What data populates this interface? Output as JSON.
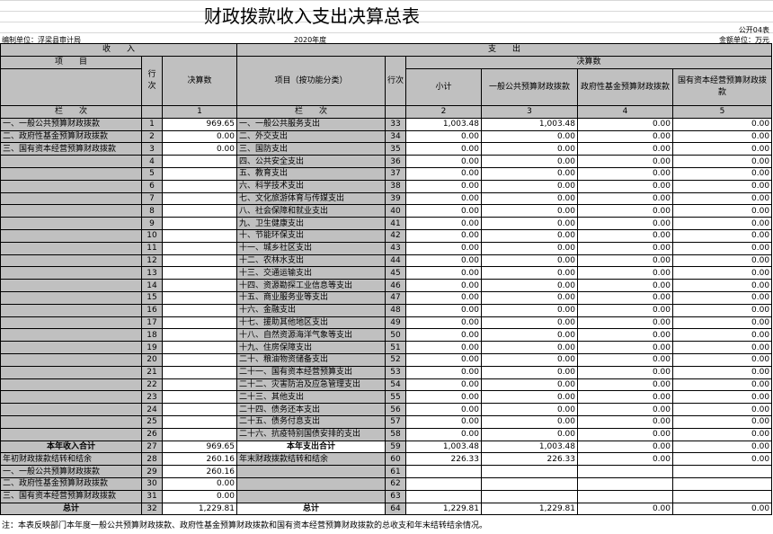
{
  "title": "财政拨款收入支出决算总表",
  "form_no": "公开04表",
  "unit": "金额单位：万元",
  "org": "编制单位：浮梁县审计局",
  "year": "2020年度",
  "header": {
    "income": "收　　入",
    "expense": "支　　出",
    "item": "项　　目",
    "line": "行次",
    "amount": "决算数",
    "item_func": "项目（按功能分类）",
    "line2": "行次",
    "final": "决算数",
    "cols": [
      "小计",
      "一般公共预算财政拨款",
      "政府性基金预算财政拨款",
      "国有资本经营预算财政拨款"
    ],
    "seq_label": "栏　　次",
    "seq": [
      "1",
      "2",
      "3",
      "4",
      "5"
    ]
  },
  "income_rows": [
    {
      "label": "一、一般公共预算财政拨款",
      "line": "1",
      "amount": "969.65"
    },
    {
      "label": "二、政府性基金预算财政拨款",
      "line": "2",
      "amount": "0.00"
    },
    {
      "label": "三、国有资本经营预算财政拨款",
      "line": "3",
      "amount": "0.00"
    },
    {
      "label": "",
      "line": "4",
      "amount": ""
    },
    {
      "label": "",
      "line": "5",
      "amount": ""
    },
    {
      "label": "",
      "line": "6",
      "amount": ""
    },
    {
      "label": "",
      "line": "7",
      "amount": ""
    },
    {
      "label": "",
      "line": "8",
      "amount": ""
    },
    {
      "label": "",
      "line": "9",
      "amount": ""
    },
    {
      "label": "",
      "line": "10",
      "amount": ""
    },
    {
      "label": "",
      "line": "11",
      "amount": ""
    },
    {
      "label": "",
      "line": "12",
      "amount": ""
    },
    {
      "label": "",
      "line": "13",
      "amount": ""
    },
    {
      "label": "",
      "line": "14",
      "amount": ""
    },
    {
      "label": "",
      "line": "15",
      "amount": ""
    },
    {
      "label": "",
      "line": "16",
      "amount": ""
    },
    {
      "label": "",
      "line": "17",
      "amount": ""
    },
    {
      "label": "",
      "line": "18",
      "amount": ""
    },
    {
      "label": "",
      "line": "19",
      "amount": ""
    },
    {
      "label": "",
      "line": "20",
      "amount": ""
    },
    {
      "label": "",
      "line": "21",
      "amount": ""
    },
    {
      "label": "",
      "line": "22",
      "amount": ""
    },
    {
      "label": "",
      "line": "23",
      "amount": ""
    },
    {
      "label": "",
      "line": "24",
      "amount": ""
    },
    {
      "label": "",
      "line": "25",
      "amount": ""
    },
    {
      "label": "",
      "line": "26",
      "amount": ""
    },
    {
      "label": "本年收入合计",
      "line": "27",
      "amount": "969.65",
      "bold": true
    },
    {
      "label": "年初财政拨款结转和结余",
      "line": "28",
      "amount": "260.16"
    },
    {
      "label": "一、一般公共预算财政拨款",
      "line": "29",
      "amount": "260.16"
    },
    {
      "label": "二、政府性基金预算财政拨款",
      "line": "30",
      "amount": "0.00"
    },
    {
      "label": "三、国有资本经营预算财政拨款",
      "line": "31",
      "amount": "0.00"
    },
    {
      "label": "总计",
      "line": "32",
      "amount": "1,229.81",
      "bold": true
    }
  ],
  "expense_rows": [
    {
      "label": "一、一般公共服务支出",
      "line": "33",
      "values": [
        "1,003.48",
        "1,003.48",
        "0.00",
        "0.00"
      ]
    },
    {
      "label": "二、外交支出",
      "line": "34",
      "values": [
        "0.00",
        "0.00",
        "0.00",
        "0.00"
      ]
    },
    {
      "label": "三、国防支出",
      "line": "35",
      "values": [
        "0.00",
        "0.00",
        "0.00",
        "0.00"
      ]
    },
    {
      "label": "四、公共安全支出",
      "line": "36",
      "values": [
        "0.00",
        "0.00",
        "0.00",
        "0.00"
      ]
    },
    {
      "label": "五、教育支出",
      "line": "37",
      "values": [
        "0.00",
        "0.00",
        "0.00",
        "0.00"
      ]
    },
    {
      "label": "六、科学技术支出",
      "line": "38",
      "values": [
        "0.00",
        "0.00",
        "0.00",
        "0.00"
      ]
    },
    {
      "label": "七、文化旅游体育与传媒支出",
      "line": "39",
      "values": [
        "0.00",
        "0.00",
        "0.00",
        "0.00"
      ]
    },
    {
      "label": "八、社会保障和就业支出",
      "line": "40",
      "values": [
        "0.00",
        "0.00",
        "0.00",
        "0.00"
      ]
    },
    {
      "label": "九、卫生健康支出",
      "line": "41",
      "values": [
        "0.00",
        "0.00",
        "0.00",
        "0.00"
      ]
    },
    {
      "label": "十、节能环保支出",
      "line": "42",
      "values": [
        "0.00",
        "0.00",
        "0.00",
        "0.00"
      ]
    },
    {
      "label": "十一、城乡社区支出",
      "line": "43",
      "values": [
        "0.00",
        "0.00",
        "0.00",
        "0.00"
      ]
    },
    {
      "label": "十二、农林水支出",
      "line": "44",
      "values": [
        "0.00",
        "0.00",
        "0.00",
        "0.00"
      ]
    },
    {
      "label": "十三、交通运输支出",
      "line": "45",
      "values": [
        "0.00",
        "0.00",
        "0.00",
        "0.00"
      ]
    },
    {
      "label": "十四、资源勘探工业信息等支出",
      "line": "46",
      "values": [
        "0.00",
        "0.00",
        "0.00",
        "0.00"
      ]
    },
    {
      "label": "十五、商业服务业等支出",
      "line": "47",
      "values": [
        "0.00",
        "0.00",
        "0.00",
        "0.00"
      ]
    },
    {
      "label": "十六、金融支出",
      "line": "48",
      "values": [
        "0.00",
        "0.00",
        "0.00",
        "0.00"
      ]
    },
    {
      "label": "十七、援助其他地区支出",
      "line": "49",
      "values": [
        "0.00",
        "0.00",
        "0.00",
        "0.00"
      ]
    },
    {
      "label": "十八、自然资源海洋气象等支出",
      "line": "50",
      "values": [
        "0.00",
        "0.00",
        "0.00",
        "0.00"
      ]
    },
    {
      "label": "十九、住房保障支出",
      "line": "51",
      "values": [
        "0.00",
        "0.00",
        "0.00",
        "0.00"
      ]
    },
    {
      "label": "二十、粮油物资储备支出",
      "line": "52",
      "values": [
        "0.00",
        "0.00",
        "0.00",
        "0.00"
      ]
    },
    {
      "label": "二十一、国有资本经营预算支出",
      "line": "53",
      "values": [
        "0.00",
        "0.00",
        "0.00",
        "0.00"
      ]
    },
    {
      "label": "二十二、灾害防治及应急管理支出",
      "line": "54",
      "values": [
        "0.00",
        "0.00",
        "0.00",
        "0.00"
      ]
    },
    {
      "label": "二十三、其他支出",
      "line": "55",
      "values": [
        "0.00",
        "0.00",
        "0.00",
        "0.00"
      ]
    },
    {
      "label": "二十四、债务还本支出",
      "line": "56",
      "values": [
        "0.00",
        "0.00",
        "0.00",
        "0.00"
      ]
    },
    {
      "label": "二十五、债务付息支出",
      "line": "57",
      "values": [
        "0.00",
        "0.00",
        "0.00",
        "0.00"
      ]
    },
    {
      "label": "二十六、抗疫特别国债安排的支出",
      "line": "58",
      "values": [
        "0.00",
        "0.00",
        "0.00",
        "0.00"
      ]
    },
    {
      "label": "本年支出合计",
      "line": "59",
      "values": [
        "1,003.48",
        "1,003.48",
        "0.00",
        "0.00"
      ],
      "bold": true
    },
    {
      "label": "年末财政拨款结转和结余",
      "line": "60",
      "values": [
        "226.33",
        "226.33",
        "0.00",
        "0.00"
      ]
    },
    {
      "label": "",
      "line": "61",
      "values": [
        "",
        "",
        "",
        ""
      ]
    },
    {
      "label": "",
      "line": "62",
      "values": [
        "",
        "",
        "",
        ""
      ]
    },
    {
      "label": "",
      "line": "63",
      "values": [
        "",
        "",
        "",
        ""
      ]
    },
    {
      "label": "总计",
      "line": "64",
      "values": [
        "1,229.81",
        "1,229.81",
        "0.00",
        "0.00"
      ],
      "bold": true
    }
  ],
  "note": "注：本表反映部门本年度一般公共预算财政拨款、政府性基金预算财政拨款和国有资本经营预算财政拨款的总收支和年末结转结余情况。"
}
